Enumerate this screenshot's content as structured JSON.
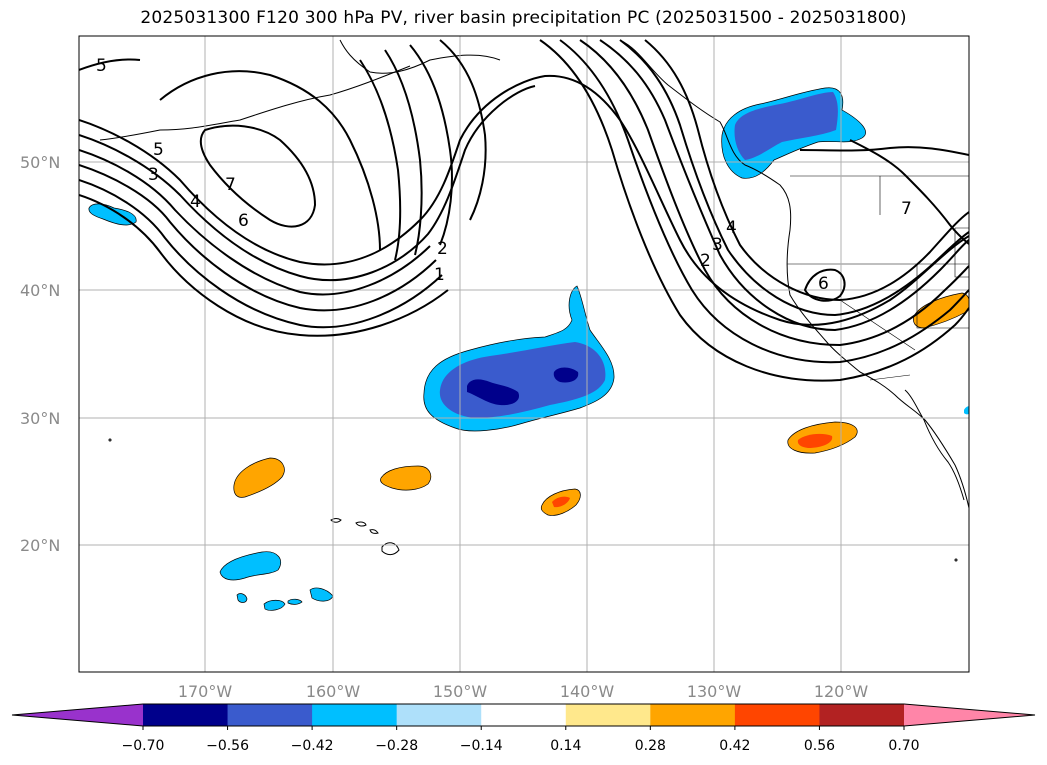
{
  "title": "2025031300 F120 300 hPa PV, river basin precipitation PC (2025031500 - 2025031800)",
  "map": {
    "lat_labels": [
      "50°N",
      "40°N",
      "30°N",
      "20°N"
    ],
    "lon_labels": [
      "170°W",
      "160°W",
      "150°W",
      "140°W",
      "130°W",
      "120°W"
    ],
    "pv_contour_labels": [
      "5",
      "5",
      "3",
      "4",
      "7",
      "6",
      "2",
      "1",
      "4",
      "3",
      "2",
      "6",
      "7"
    ],
    "grid": true
  },
  "colorbar": {
    "ticks": [
      "−0.70",
      "−0.56",
      "−0.42",
      "−0.28",
      "−0.14",
      "0.14",
      "0.28",
      "0.42",
      "0.56",
      "0.70"
    ],
    "colors": [
      "#9932cc",
      "#00008b",
      "#3a5bcd",
      "#00bfff",
      "#aee0fa",
      "#ffffff",
      "#ffe88c",
      "#ffa500",
      "#ff4500",
      "#b22222",
      "#ff85a8"
    ]
  }
}
